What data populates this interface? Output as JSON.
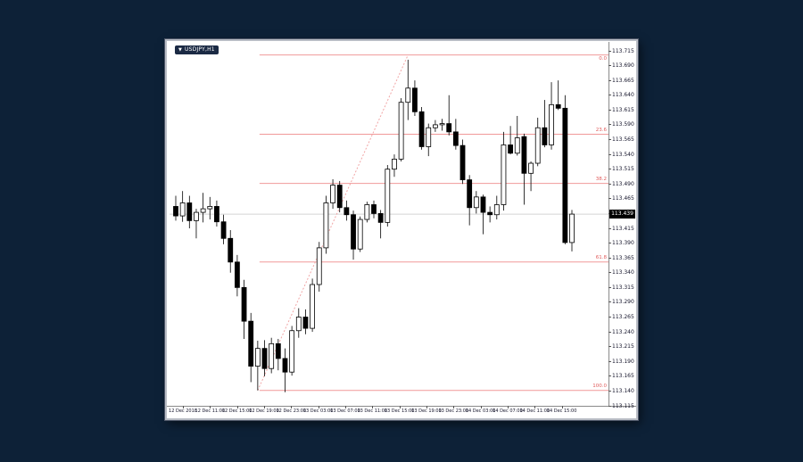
{
  "window": {
    "symbol_label": "USDJPY,H1",
    "dropdown_icon": "▼"
  },
  "colors": {
    "desktop_bg": "#0d2137",
    "frame": "#b9bdc5",
    "chart_bg": "#ffffff",
    "bull_body": "#ffffff",
    "bear_body": "#000000",
    "candle_outline": "#000000",
    "fib_line": "#f19999",
    "fib_trendline": "#f1a5a5",
    "fib_label": "#e05c5c",
    "current_price_line": "#d4d4d4",
    "badge_bg": "#000000",
    "badge_text": "#ffffff",
    "axis_text": "#14142a"
  },
  "price_axis": {
    "current_price_label": "113.439",
    "ticks": [
      "113.715",
      "113.690",
      "113.665",
      "113.640",
      "113.615",
      "113.590",
      "113.565",
      "113.540",
      "113.515",
      "113.490",
      "113.465",
      "113.440",
      "113.415",
      "113.390",
      "113.365",
      "113.340",
      "113.315",
      "113.290",
      "113.265",
      "113.240",
      "113.215",
      "113.190",
      "113.165",
      "113.140",
      "113.115"
    ]
  },
  "time_axis": {
    "labels": [
      "12 Dec 2018",
      "12 Dec 11:00",
      "12 Dec 15:00",
      "12 Dec 19:00",
      "12 Dec 23:00",
      "13 Dec 03:00",
      "13 Dec 07:00",
      "13 Dec 11:00",
      "13 Dec 15:00",
      "13 Dec 19:00",
      "13 Dec 23:00",
      "14 Dec 03:00",
      "14 Dec 07:00",
      "14 Dec 11:00",
      "14 Dec 15:00"
    ]
  },
  "chart_data": {
    "type": "candlestick",
    "title": "USDJPY,H1",
    "symbol": "USDJPY",
    "timeframe": "H1",
    "ylim": [
      113.115,
      113.715
    ],
    "grid": false,
    "legend": "none",
    "current_price": 113.439,
    "fibonacci": {
      "levels": [
        {
          "label": "0.0",
          "price": 113.708
        },
        {
          "label": "23.6",
          "price": 113.574
        },
        {
          "label": "38.2",
          "price": 113.491
        },
        {
          "label": "61.8",
          "price": 113.358
        },
        {
          "label": "100.0",
          "price": 113.141
        }
      ],
      "trendline": {
        "from_bar": 13,
        "from_price": 113.141,
        "to_bar": 35,
        "to_price": 113.708
      },
      "start_bar": 13
    },
    "candles": [
      {
        "o": 113.452,
        "h": 113.47,
        "l": 113.428,
        "c": 113.436
      },
      {
        "o": 113.436,
        "h": 113.478,
        "l": 113.426,
        "c": 113.458
      },
      {
        "o": 113.458,
        "h": 113.47,
        "l": 113.415,
        "c": 113.428
      },
      {
        "o": 113.428,
        "h": 113.448,
        "l": 113.398,
        "c": 113.442
      },
      {
        "o": 113.442,
        "h": 113.475,
        "l": 113.425,
        "c": 113.448
      },
      {
        "o": 113.448,
        "h": 113.468,
        "l": 113.43,
        "c": 113.452
      },
      {
        "o": 113.452,
        "h": 113.462,
        "l": 113.418,
        "c": 113.426
      },
      {
        "o": 113.426,
        "h": 113.438,
        "l": 113.388,
        "c": 113.398
      },
      {
        "o": 113.398,
        "h": 113.412,
        "l": 113.34,
        "c": 113.358
      },
      {
        "o": 113.358,
        "h": 113.37,
        "l": 113.3,
        "c": 113.315
      },
      {
        "o": 113.315,
        "h": 113.328,
        "l": 113.228,
        "c": 113.258
      },
      {
        "o": 113.258,
        "h": 113.272,
        "l": 113.155,
        "c": 113.182
      },
      {
        "o": 113.182,
        "h": 113.225,
        "l": 113.141,
        "c": 113.212
      },
      {
        "o": 113.212,
        "h": 113.226,
        "l": 113.165,
        "c": 113.178
      },
      {
        "o": 113.178,
        "h": 113.23,
        "l": 113.17,
        "c": 113.22
      },
      {
        "o": 113.22,
        "h": 113.228,
        "l": 113.175,
        "c": 113.195
      },
      {
        "o": 113.195,
        "h": 113.212,
        "l": 113.138,
        "c": 113.172
      },
      {
        "o": 113.172,
        "h": 113.25,
        "l": 113.166,
        "c": 113.242
      },
      {
        "o": 113.242,
        "h": 113.28,
        "l": 113.23,
        "c": 113.265
      },
      {
        "o": 113.265,
        "h": 113.278,
        "l": 113.236,
        "c": 113.246
      },
      {
        "o": 113.246,
        "h": 113.33,
        "l": 113.24,
        "c": 113.32
      },
      {
        "o": 113.32,
        "h": 113.392,
        "l": 113.308,
        "c": 113.382
      },
      {
        "o": 113.382,
        "h": 113.47,
        "l": 113.372,
        "c": 113.458
      },
      {
        "o": 113.458,
        "h": 113.498,
        "l": 113.448,
        "c": 113.488
      },
      {
        "o": 113.488,
        "h": 113.495,
        "l": 113.442,
        "c": 113.45
      },
      {
        "o": 113.45,
        "h": 113.462,
        "l": 113.428,
        "c": 113.438
      },
      {
        "o": 113.438,
        "h": 113.445,
        "l": 113.362,
        "c": 113.38
      },
      {
        "o": 113.38,
        "h": 113.435,
        "l": 113.375,
        "c": 113.43
      },
      {
        "o": 113.43,
        "h": 113.46,
        "l": 113.425,
        "c": 113.455
      },
      {
        "o": 113.455,
        "h": 113.462,
        "l": 113.432,
        "c": 113.44
      },
      {
        "o": 113.44,
        "h": 113.446,
        "l": 113.398,
        "c": 113.425
      },
      {
        "o": 113.425,
        "h": 113.522,
        "l": 113.418,
        "c": 113.515
      },
      {
        "o": 113.515,
        "h": 113.54,
        "l": 113.502,
        "c": 113.532
      },
      {
        "o": 113.532,
        "h": 113.635,
        "l": 113.528,
        "c": 113.628
      },
      {
        "o": 113.628,
        "h": 113.7,
        "l": 113.598,
        "c": 113.652
      },
      {
        "o": 113.652,
        "h": 113.665,
        "l": 113.605,
        "c": 113.612
      },
      {
        "o": 113.612,
        "h": 113.62,
        "l": 113.548,
        "c": 113.553
      },
      {
        "o": 113.553,
        "h": 113.592,
        "l": 113.537,
        "c": 113.585
      },
      {
        "o": 113.585,
        "h": 113.598,
        "l": 113.578,
        "c": 113.59
      },
      {
        "o": 113.59,
        "h": 113.6,
        "l": 113.58,
        "c": 113.592
      },
      {
        "o": 113.592,
        "h": 113.64,
        "l": 113.572,
        "c": 113.578
      },
      {
        "o": 113.578,
        "h": 113.6,
        "l": 113.548,
        "c": 113.555
      },
      {
        "o": 113.555,
        "h": 113.565,
        "l": 113.49,
        "c": 113.497
      },
      {
        "o": 113.497,
        "h": 113.505,
        "l": 113.42,
        "c": 113.45
      },
      {
        "o": 113.45,
        "h": 113.478,
        "l": 113.44,
        "c": 113.468
      },
      {
        "o": 113.468,
        "h": 113.472,
        "l": 113.405,
        "c": 113.442
      },
      {
        "o": 113.442,
        "h": 113.452,
        "l": 113.425,
        "c": 113.438
      },
      {
        "o": 113.438,
        "h": 113.47,
        "l": 113.43,
        "c": 113.455
      },
      {
        "o": 113.455,
        "h": 113.578,
        "l": 113.445,
        "c": 113.556
      },
      {
        "o": 113.556,
        "h": 113.588,
        "l": 113.54,
        "c": 113.542
      },
      {
        "o": 113.542,
        "h": 113.605,
        "l": 113.538,
        "c": 113.568
      },
      {
        "o": 113.57,
        "h": 113.575,
        "l": 113.455,
        "c": 113.508
      },
      {
        "o": 113.508,
        "h": 113.528,
        "l": 113.478,
        "c": 113.525
      },
      {
        "o": 113.525,
        "h": 113.602,
        "l": 113.52,
        "c": 113.585
      },
      {
        "o": 113.585,
        "h": 113.632,
        "l": 113.552,
        "c": 113.556
      },
      {
        "o": 113.556,
        "h": 113.662,
        "l": 113.548,
        "c": 113.624
      },
      {
        "o": 113.624,
        "h": 113.665,
        "l": 113.615,
        "c": 113.618
      },
      {
        "o": 113.618,
        "h": 113.64,
        "l": 113.388,
        "c": 113.391
      },
      {
        "o": 113.391,
        "h": 113.446,
        "l": 113.376,
        "c": 113.439
      }
    ]
  }
}
